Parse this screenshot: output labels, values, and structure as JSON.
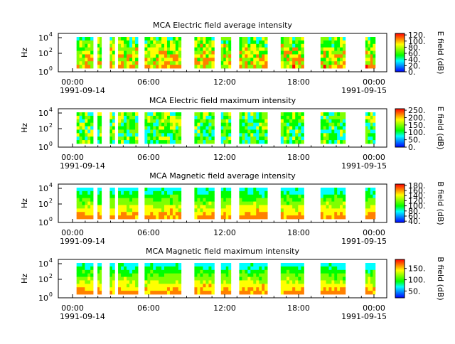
{
  "colors": {
    "axis": "#000000",
    "background": "#ffffff",
    "gap": "#ffffff",
    "colormap": [
      "#0000ff",
      "#0080ff",
      "#00ffff",
      "#00ff00",
      "#80ff00",
      "#ffff00",
      "#ff8000",
      "#ff0000"
    ]
  },
  "chart_data": [
    {
      "type": "heatmap",
      "title": "MCA  Electric field average intensity",
      "ylabel": "Hz",
      "cbar_label": "E field (dB)",
      "yticks": [
        "10",
        "10",
        "10"
      ],
      "yexps": [
        "0",
        "2",
        "4"
      ],
      "cbar_ticks": [
        "0.",
        "20.",
        "40.",
        "60.",
        "80.",
        "100.",
        "120."
      ],
      "cbar_range": [
        0,
        125
      ],
      "xticks": [
        "00:00",
        "06:00",
        "12:00",
        "18:00",
        "00:00"
      ],
      "date_left": "1991-09-14",
      "date_right": "1991-09-15",
      "level": 80
    },
    {
      "type": "heatmap",
      "title": "MCA  Electric field maximum intensity",
      "ylabel": "Hz",
      "cbar_label": "E field (dB)",
      "yticks": [
        "10",
        "10",
        "10"
      ],
      "yexps": [
        "0",
        "2",
        "4"
      ],
      "cbar_ticks": [
        "0.",
        "50.",
        "100.",
        "150.",
        "200.",
        "250."
      ],
      "cbar_range": [
        0,
        260
      ],
      "xticks": [
        "00:00",
        "06:00",
        "12:00",
        "18:00",
        "00:00"
      ],
      "date_left": "1991-09-14",
      "date_right": "1991-09-15",
      "level": 95
    },
    {
      "type": "heatmap",
      "title": "MCA  Magnetic field average intensity",
      "ylabel": "Hz",
      "cbar_label": "B field (dB)",
      "yticks": [
        "10",
        "10",
        "10"
      ],
      "yexps": [
        "0",
        "2",
        "4"
      ],
      "cbar_ticks": [
        "40.",
        "60.",
        "80.",
        "100.",
        "120.",
        "140.",
        "160.",
        "180."
      ],
      "cbar_range": [
        35,
        185
      ],
      "xticks": [
        "00:00",
        "06:00",
        "12:00",
        "18:00",
        "00:00"
      ],
      "date_left": "1991-09-14",
      "date_right": "1991-09-15",
      "level": 100
    },
    {
      "type": "heatmap",
      "title": "MCA  Magnetic field maximum intensity",
      "ylabel": "Hz",
      "cbar_label": "B field (dB)",
      "yticks": [
        "10",
        "10",
        "10"
      ],
      "yexps": [
        "0",
        "2",
        "4"
      ],
      "cbar_ticks": [
        "50.",
        "100.",
        "150."
      ],
      "cbar_range": [
        20,
        190
      ],
      "xticks": [
        "00:00",
        "06:00",
        "12:00",
        "18:00",
        "00:00"
      ],
      "date_left": "1991-09-14",
      "date_right": "1991-09-15",
      "level": 110
    }
  ]
}
